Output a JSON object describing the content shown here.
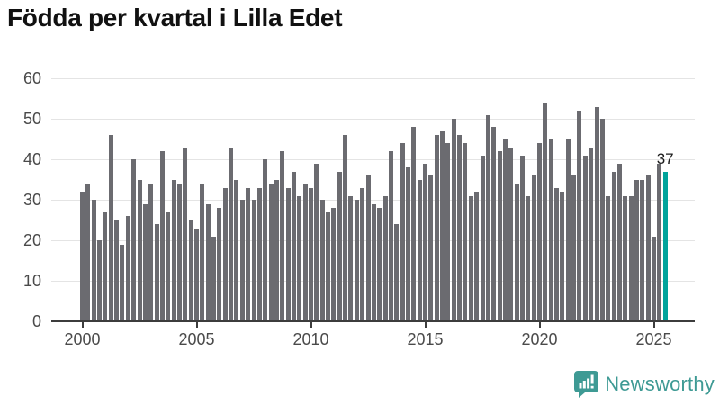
{
  "title": "Födda per kvartal i Lilla Edet",
  "branding": {
    "logo_text": "Newsworthy",
    "logo_color": "#3e9a94"
  },
  "chart_data": {
    "type": "bar",
    "title": "Födda per kvartal i Lilla Edet",
    "xlabel": "",
    "ylabel": "",
    "period": "quarterly",
    "x_start": "2000Q1",
    "x_end": "2025Q3",
    "quarters": [
      "2000Q1",
      "2000Q2",
      "2000Q3",
      "2000Q4",
      "2001Q1",
      "2001Q2",
      "2001Q3",
      "2001Q4",
      "2002Q1",
      "2002Q2",
      "2002Q3",
      "2002Q4",
      "2003Q1",
      "2003Q2",
      "2003Q3",
      "2003Q4",
      "2004Q1",
      "2004Q2",
      "2004Q3",
      "2004Q4",
      "2005Q1",
      "2005Q2",
      "2005Q3",
      "2005Q4",
      "2006Q1",
      "2006Q2",
      "2006Q3",
      "2006Q4",
      "2007Q1",
      "2007Q2",
      "2007Q3",
      "2007Q4",
      "2008Q1",
      "2008Q2",
      "2008Q3",
      "2008Q4",
      "2009Q1",
      "2009Q2",
      "2009Q3",
      "2009Q4",
      "2010Q1",
      "2010Q2",
      "2010Q3",
      "2010Q4",
      "2011Q1",
      "2011Q2",
      "2011Q3",
      "2011Q4",
      "2012Q1",
      "2012Q2",
      "2012Q3",
      "2012Q4",
      "2013Q1",
      "2013Q2",
      "2013Q3",
      "2013Q4",
      "2014Q1",
      "2014Q2",
      "2014Q3",
      "2014Q4",
      "2015Q1",
      "2015Q2",
      "2015Q3",
      "2015Q4",
      "2016Q1",
      "2016Q2",
      "2016Q3",
      "2016Q4",
      "2017Q1",
      "2017Q2",
      "2017Q3",
      "2017Q4",
      "2018Q1",
      "2018Q2",
      "2018Q3",
      "2018Q4",
      "2019Q1",
      "2019Q2",
      "2019Q3",
      "2019Q4",
      "2020Q1",
      "2020Q2",
      "2020Q3",
      "2020Q4",
      "2021Q1",
      "2021Q2",
      "2021Q3",
      "2021Q4",
      "2022Q1",
      "2022Q2",
      "2022Q3",
      "2022Q4",
      "2023Q1",
      "2023Q2",
      "2023Q3",
      "2023Q4",
      "2024Q1",
      "2024Q2",
      "2024Q3",
      "2024Q4",
      "2025Q1",
      "2025Q2",
      "2025Q3"
    ],
    "values": [
      32,
      34,
      30,
      20,
      27,
      46,
      25,
      19,
      26,
      40,
      35,
      29,
      34,
      24,
      42,
      27,
      35,
      34,
      43,
      25,
      23,
      34,
      29,
      21,
      28,
      33,
      43,
      35,
      30,
      33,
      30,
      33,
      40,
      34,
      35,
      42,
      33,
      37,
      31,
      34,
      33,
      39,
      30,
      27,
      28,
      37,
      46,
      31,
      30,
      33,
      36,
      29,
      28,
      31,
      42,
      24,
      44,
      38,
      48,
      35,
      39,
      36,
      46,
      47,
      44,
      50,
      46,
      44,
      31,
      32,
      41,
      51,
      48,
      42,
      45,
      43,
      34,
      41,
      31,
      36,
      44,
      54,
      45,
      33,
      32,
      45,
      36,
      52,
      41,
      43,
      53,
      50,
      31,
      37,
      39,
      31,
      31,
      35,
      35,
      36,
      21,
      39,
      37
    ],
    "highlight_last": true,
    "last_value_label": "37",
    "y_ticks": [
      0,
      10,
      20,
      30,
      40,
      50,
      60
    ],
    "ylim": [
      0,
      60
    ],
    "x_tick_labels": [
      "2000",
      "2005",
      "2010",
      "2015",
      "2020",
      "2025"
    ],
    "x_tick_years": [
      2000,
      2005,
      2010,
      2015,
      2020,
      2025
    ],
    "grid": true,
    "legend": "none",
    "bar_color": "#6b6b70",
    "highlight_color": "#00a39b",
    "grid_color": "#e4e4e4",
    "axis_color": "#3c3c3c",
    "tick_label_color": "#4a4a4a"
  }
}
